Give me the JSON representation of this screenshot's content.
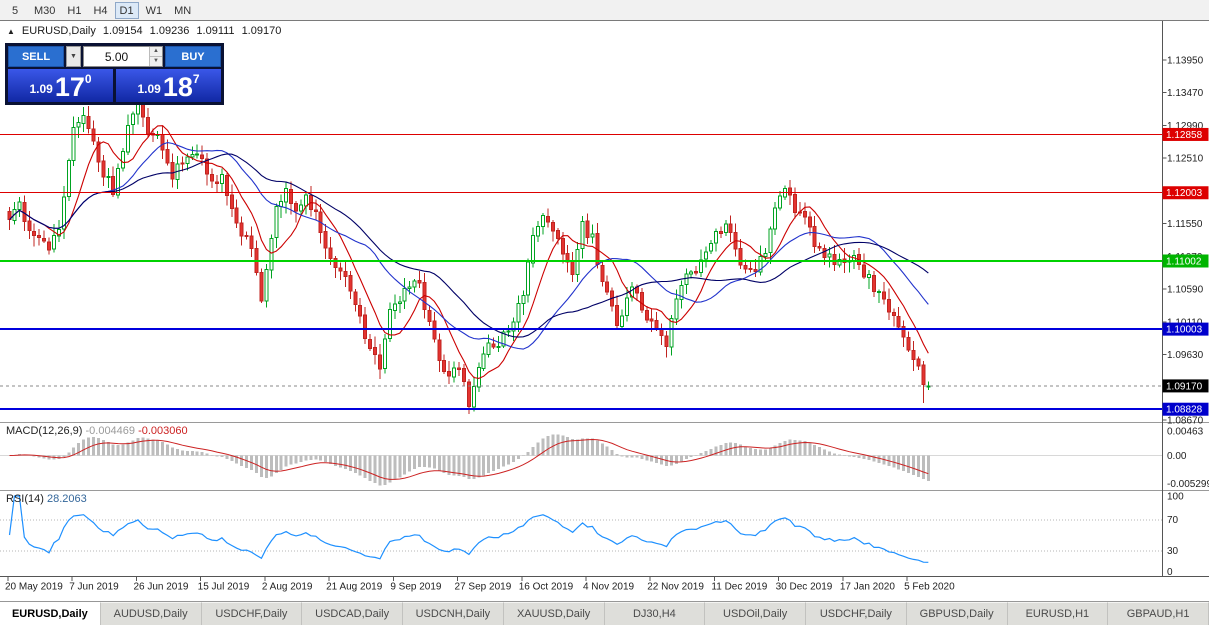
{
  "icons": {
    "up_triangle": "▲",
    "dropdown_arrow": "▼",
    "spinner_up": "▲",
    "spinner_down": "▼"
  },
  "toolbar": {
    "timeframes": [
      "5",
      "M30",
      "H1",
      "H4",
      "D1",
      "W1",
      "MN"
    ],
    "active": "D1"
  },
  "chart": {
    "title_symbol": "EURUSD,Daily",
    "ohlc": {
      "o": "1.09154",
      "h": "1.09236",
      "l": "1.09111",
      "c": "1.09170"
    },
    "trade_panel": {
      "sell_label": "SELL",
      "buy_label": "BUY",
      "lot_size": "5.00",
      "sell_price": {
        "prefix": "1.09",
        "big": "17",
        "sup": "0"
      },
      "buy_price": {
        "prefix": "1.09",
        "big": "18",
        "sup": "7"
      }
    },
    "price_axis": {
      "ticks": [
        "1.13950",
        "1.13470",
        "1.12990",
        "1.12510",
        "1.11550",
        "1.11070",
        "1.10590",
        "1.10110",
        "1.09630",
        "1.08670"
      ]
    },
    "tags": [
      {
        "label": "1.12858",
        "price": 1.12858,
        "bg": "#dd0000",
        "fg": "#ffffff"
      },
      {
        "label": "1.12003",
        "price": 1.12003,
        "bg": "#dd0000",
        "fg": "#ffffff"
      },
      {
        "label": "1.11002",
        "price": 1.11002,
        "bg": "#00b400",
        "fg": "#ffffff"
      },
      {
        "label": "1.10003",
        "price": 1.10003,
        "bg": "#0000cc",
        "fg": "#ffffff"
      },
      {
        "label": "1.09170",
        "price": 1.0917,
        "bg": "#000000",
        "fg": "#ffffff"
      },
      {
        "label": "1.08828",
        "price": 1.08828,
        "bg": "#0000cc",
        "fg": "#ffffff"
      }
    ],
    "date_axis": {
      "labels": [
        "20 May 2019",
        "7 Jun 2019",
        "26 Jun 2019",
        "15 Jul 2019",
        "2 Aug 2019",
        "21 Aug 2019",
        "9 Sep 2019",
        "27 Sep 2019",
        "16 Oct 2019",
        "4 Nov 2019",
        "22 Nov 2019",
        "11 Dec 2019",
        "30 Dec 2019",
        "17 Jan 2020",
        "5 Feb 2020"
      ]
    },
    "macd_panel": {
      "title": "MACD(12,26,9)",
      "main_value": "-0.004469",
      "signal_value": "-0.003060",
      "axis_labels": [
        "0.00463",
        "0.00",
        "-0.005299"
      ]
    },
    "rsi_panel": {
      "title": "RSI(14)",
      "value": "28.2063",
      "axis_labels": [
        "100",
        "70",
        "30",
        "0"
      ]
    }
  },
  "chart_data": {
    "type": "candlestick",
    "symbol": "EURUSD",
    "timeframe": "Daily",
    "n_candles": 187,
    "date_label_step": 13,
    "price_view": {
      "top": 1.1439,
      "bottom": 1.084
    },
    "last_candle": {
      "o": 1.09154,
      "h": 1.09236,
      "l": 1.09111,
      "c": 1.0917
    },
    "anchors": [
      [
        0,
        1.1163
      ],
      [
        2,
        1.1178
      ],
      [
        4,
        1.115
      ],
      [
        6,
        1.1135
      ],
      [
        8,
        1.112
      ],
      [
        10,
        1.115
      ],
      [
        12,
        1.125
      ],
      [
        13,
        1.129
      ],
      [
        15,
        1.1305
      ],
      [
        17,
        1.127
      ],
      [
        19,
        1.123
      ],
      [
        21,
        1.12
      ],
      [
        23,
        1.126
      ],
      [
        25,
        1.132
      ],
      [
        26,
        1.1335
      ],
      [
        28,
        1.129
      ],
      [
        30,
        1.1285
      ],
      [
        33,
        1.1225
      ],
      [
        36,
        1.126
      ],
      [
        39,
        1.1255
      ],
      [
        41,
        1.1215
      ],
      [
        43,
        1.123
      ],
      [
        45,
        1.118
      ],
      [
        47,
        1.114
      ],
      [
        49,
        1.112
      ],
      [
        51,
        1.104
      ],
      [
        52,
        1.1085
      ],
      [
        54,
        1.118
      ],
      [
        56,
        1.1205
      ],
      [
        58,
        1.118
      ],
      [
        60,
        1.1195
      ],
      [
        62,
        1.117
      ],
      [
        64,
        1.112
      ],
      [
        66,
        1.1095
      ],
      [
        68,
        1.108
      ],
      [
        70,
        1.104
      ],
      [
        72,
        1.099
      ],
      [
        74,
        1.096
      ],
      [
        75,
        1.0935
      ],
      [
        77,
        1.103
      ],
      [
        79,
        1.1045
      ],
      [
        81,
        1.1065
      ],
      [
        83,
        1.106
      ],
      [
        85,
        1.1005
      ],
      [
        87,
        1.0955
      ],
      [
        89,
        1.093
      ],
      [
        91,
        1.0945
      ],
      [
        93,
        1.089
      ],
      [
        95,
        1.0935
      ],
      [
        97,
        1.0985
      ],
      [
        99,
        1.0975
      ],
      [
        101,
        1.1
      ],
      [
        104,
        1.105
      ],
      [
        106,
        1.113
      ],
      [
        108,
        1.1165
      ],
      [
        110,
        1.115
      ],
      [
        112,
        1.1105
      ],
      [
        114,
        1.108
      ],
      [
        116,
        1.1152
      ],
      [
        118,
        1.1135
      ],
      [
        120,
        1.107
      ],
      [
        123,
        1.1005
      ],
      [
        126,
        1.106
      ],
      [
        129,
        1.102
      ],
      [
        131,
        1.1
      ],
      [
        133,
        1.098
      ],
      [
        135,
        1.104
      ],
      [
        137,
        1.108
      ],
      [
        139,
        1.108
      ],
      [
        141,
        1.111
      ],
      [
        143,
        1.1135
      ],
      [
        145,
        1.115
      ],
      [
        147,
        1.112
      ],
      [
        149,
        1.108
      ],
      [
        151,
        1.109
      ],
      [
        153,
        1.112
      ],
      [
        155,
        1.1175
      ],
      [
        157,
        1.1215
      ],
      [
        159,
        1.1175
      ],
      [
        161,
        1.116
      ],
      [
        163,
        1.113
      ],
      [
        165,
        1.111
      ],
      [
        167,
        1.11
      ],
      [
        169,
        1.1095
      ],
      [
        171,
        1.1105
      ],
      [
        173,
        1.1085
      ],
      [
        175,
        1.106
      ],
      [
        177,
        1.104
      ],
      [
        179,
        1.1015
      ],
      [
        181,
        1.0995
      ],
      [
        183,
        1.096
      ],
      [
        185,
        1.0925
      ],
      [
        186,
        1.0917
      ]
    ],
    "wick_overrides": {
      "93": 1.0876,
      "185": 1.0892
    },
    "levels": [
      {
        "price": 1.12858,
        "color": "#dd0000",
        "width": 1
      },
      {
        "price": 1.12003,
        "color": "#dd0000",
        "width": 1
      },
      {
        "price": 1.11002,
        "color": "#00d200",
        "width": 2
      },
      {
        "price": 1.10003,
        "color": "#0000dd",
        "width": 2
      },
      {
        "price": 1.08828,
        "color": "#0000dd",
        "width": 2
      }
    ],
    "bid": {
      "price": 1.0917,
      "color": "#888888"
    },
    "moving_averages": [
      {
        "period": 8,
        "color": "#cc0000"
      },
      {
        "period": 21,
        "color": "#2233cc"
      },
      {
        "period": 34,
        "color": "#000066"
      }
    ],
    "candle_colors": {
      "bull_fill": "#ffffff",
      "bull_stroke": "#00a321",
      "bear_fill": "#e43330",
      "bear_stroke": "#c02420"
    },
    "indicators": {
      "macd": {
        "fast": 12,
        "slow": 26,
        "signal": 9,
        "histogram_color": "#bdbdbd",
        "signal_color": "#cc2222"
      },
      "rsi": {
        "period": 14,
        "color": "#1e90ff",
        "levels": [
          70,
          30
        ]
      }
    }
  },
  "tabs": [
    {
      "label": "EURUSD,Daily",
      "active": true
    },
    {
      "label": "AUDUSD,Daily",
      "active": false
    },
    {
      "label": "USDCHF,Daily",
      "active": false
    },
    {
      "label": "USDCAD,Daily",
      "active": false
    },
    {
      "label": "USDCNH,Daily",
      "active": false
    },
    {
      "label": "XAUUSD,Daily",
      "active": false
    },
    {
      "label": "DJ30,H4",
      "active": false
    },
    {
      "label": "USDOil,Daily",
      "active": false
    },
    {
      "label": "USDCHF,Daily",
      "active": false
    },
    {
      "label": "GBPUSD,Daily",
      "active": false
    },
    {
      "label": "EURUSD,H1",
      "active": false
    },
    {
      "label": "GBPAUD,H1",
      "active": false
    }
  ]
}
